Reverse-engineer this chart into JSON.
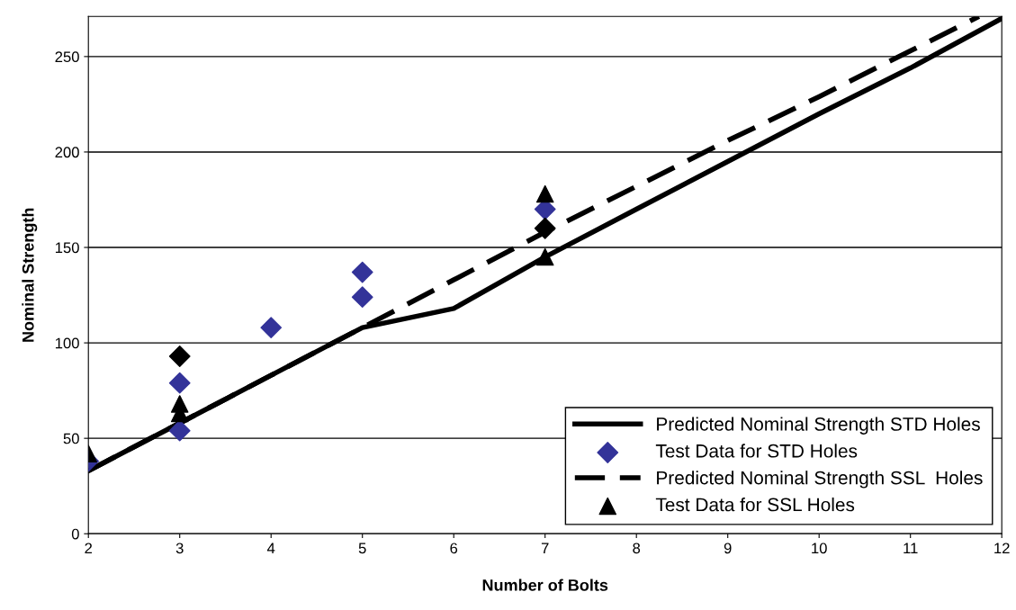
{
  "chart_data": {
    "type": "scatter",
    "xlabel": "Number of Bolts",
    "ylabel": "Nominal Strength",
    "xlim": [
      2,
      12
    ],
    "xticks": [
      2,
      3,
      4,
      5,
      6,
      7,
      8,
      9,
      10,
      11,
      12
    ],
    "ylim": [
      0,
      271
    ],
    "yticks": [
      0,
      50,
      100,
      150,
      200,
      250
    ],
    "grid": "y",
    "legend": "bottom right",
    "series": [
      {
        "name": "Predicted Nominal Strength STD Holes",
        "type": "line",
        "line_style": "solid",
        "marker": "none",
        "color": "#000000",
        "x": [
          2,
          3,
          4,
          5,
          6,
          7,
          8,
          9,
          10,
          11,
          12
        ],
        "values": [
          33,
          58,
          83,
          108,
          118,
          145,
          170,
          195,
          220,
          244,
          270
        ]
      },
      {
        "name": "Test Data for STD Holes",
        "marker": "diamond",
        "color": "#333399",
        "x": [
          2,
          3,
          3,
          4,
          5,
          5,
          7
        ],
        "values": [
          38,
          79,
          54,
          108,
          137,
          124,
          170
        ]
      },
      {
        "name": "Predicted Nominal Strength SSL  Holes",
        "type": "line",
        "line_style": "dashed",
        "marker": "none",
        "color": "#000000",
        "x": [
          2,
          3,
          4,
          5,
          6,
          7,
          8,
          9,
          10,
          11,
          11.75
        ],
        "values": [
          33,
          58,
          83,
          108,
          133,
          158,
          182,
          206,
          229,
          253,
          271
        ]
      },
      {
        "name": "Test Data for SSL Holes",
        "marker": "triangle",
        "color": "#000000",
        "x": [
          2,
          3,
          3,
          7,
          7
        ],
        "values": [
          42,
          68,
          63,
          178,
          145
        ]
      },
      {
        "marker": "diamond",
        "color": "#000000",
        "x": [
          3,
          7
        ],
        "values": [
          93,
          160
        ]
      }
    ]
  }
}
